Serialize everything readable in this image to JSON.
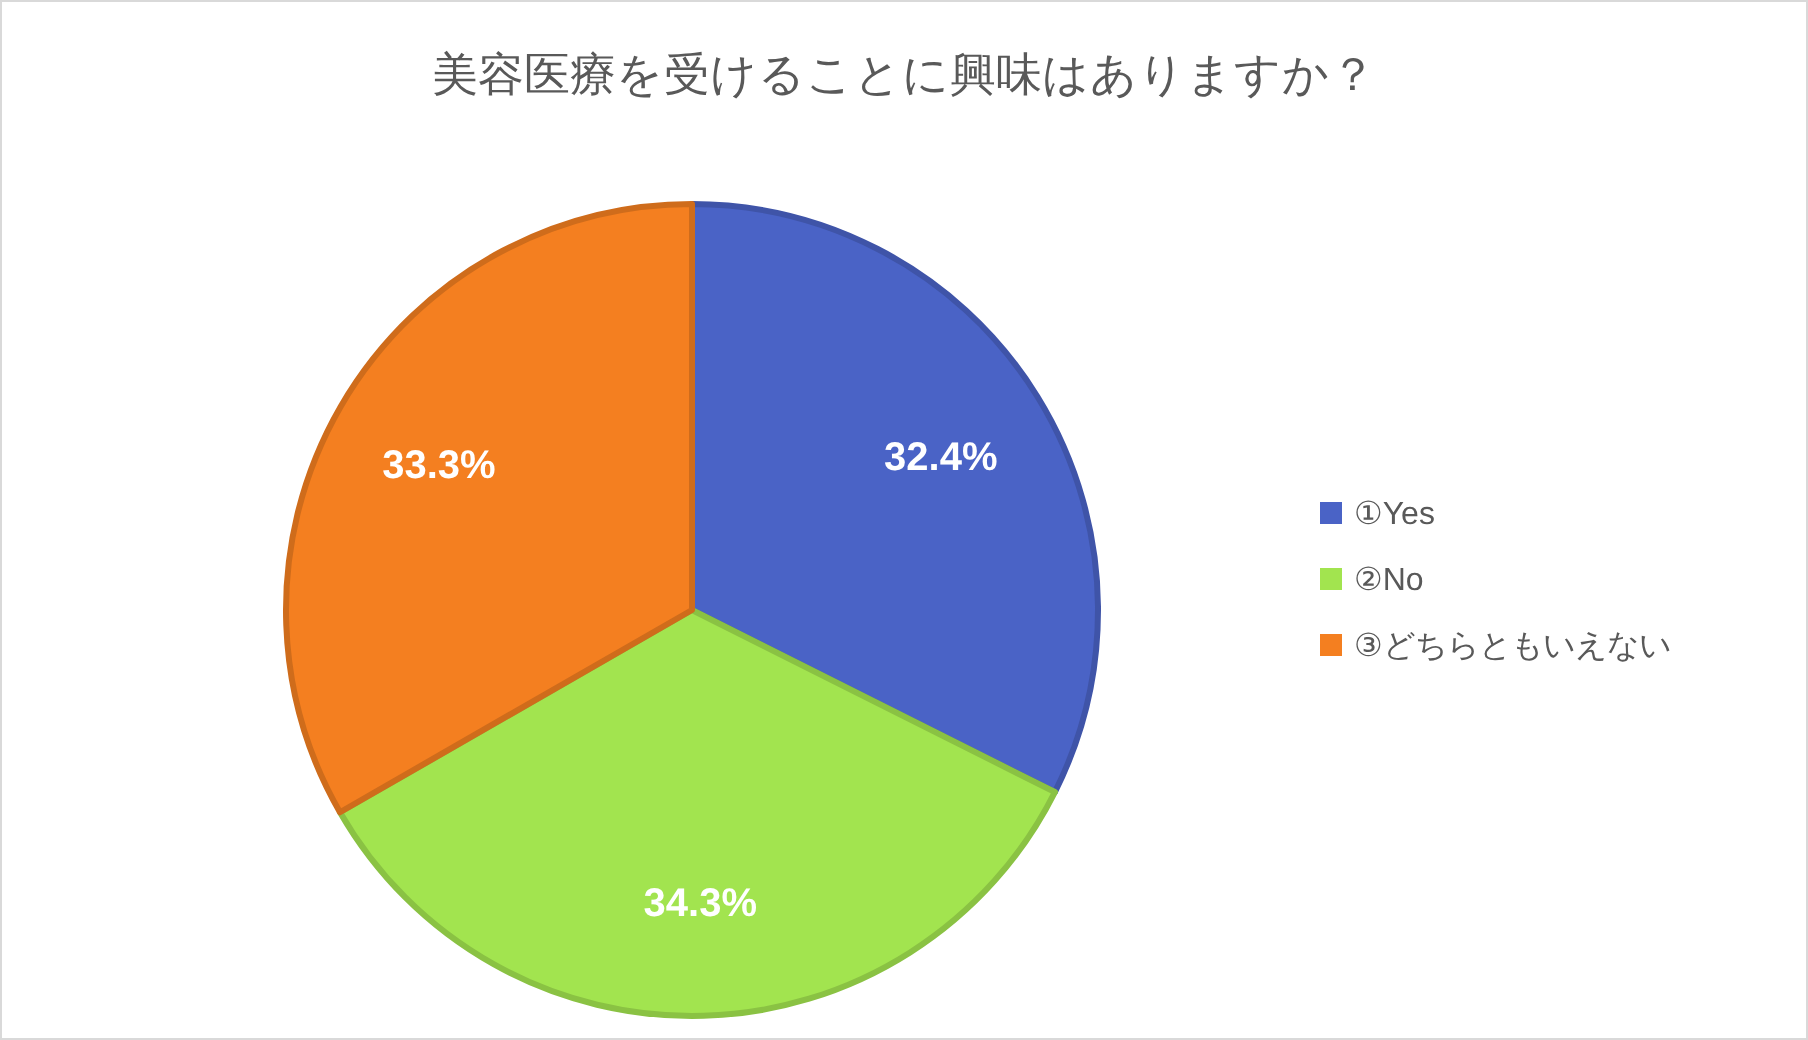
{
  "chart_data": {
    "type": "pie",
    "title": "美容医療を受けることに興味はありますか？",
    "categories": [
      "①Yes",
      "②No",
      "③どちらともいえない"
    ],
    "values": [
      32.4,
      34.3,
      33.3
    ],
    "value_labels": [
      "32.4%",
      "34.3%",
      "33.3%"
    ],
    "colors": [
      "#4a63c6",
      "#a2e44f",
      "#f47f20"
    ],
    "legend": "right"
  }
}
